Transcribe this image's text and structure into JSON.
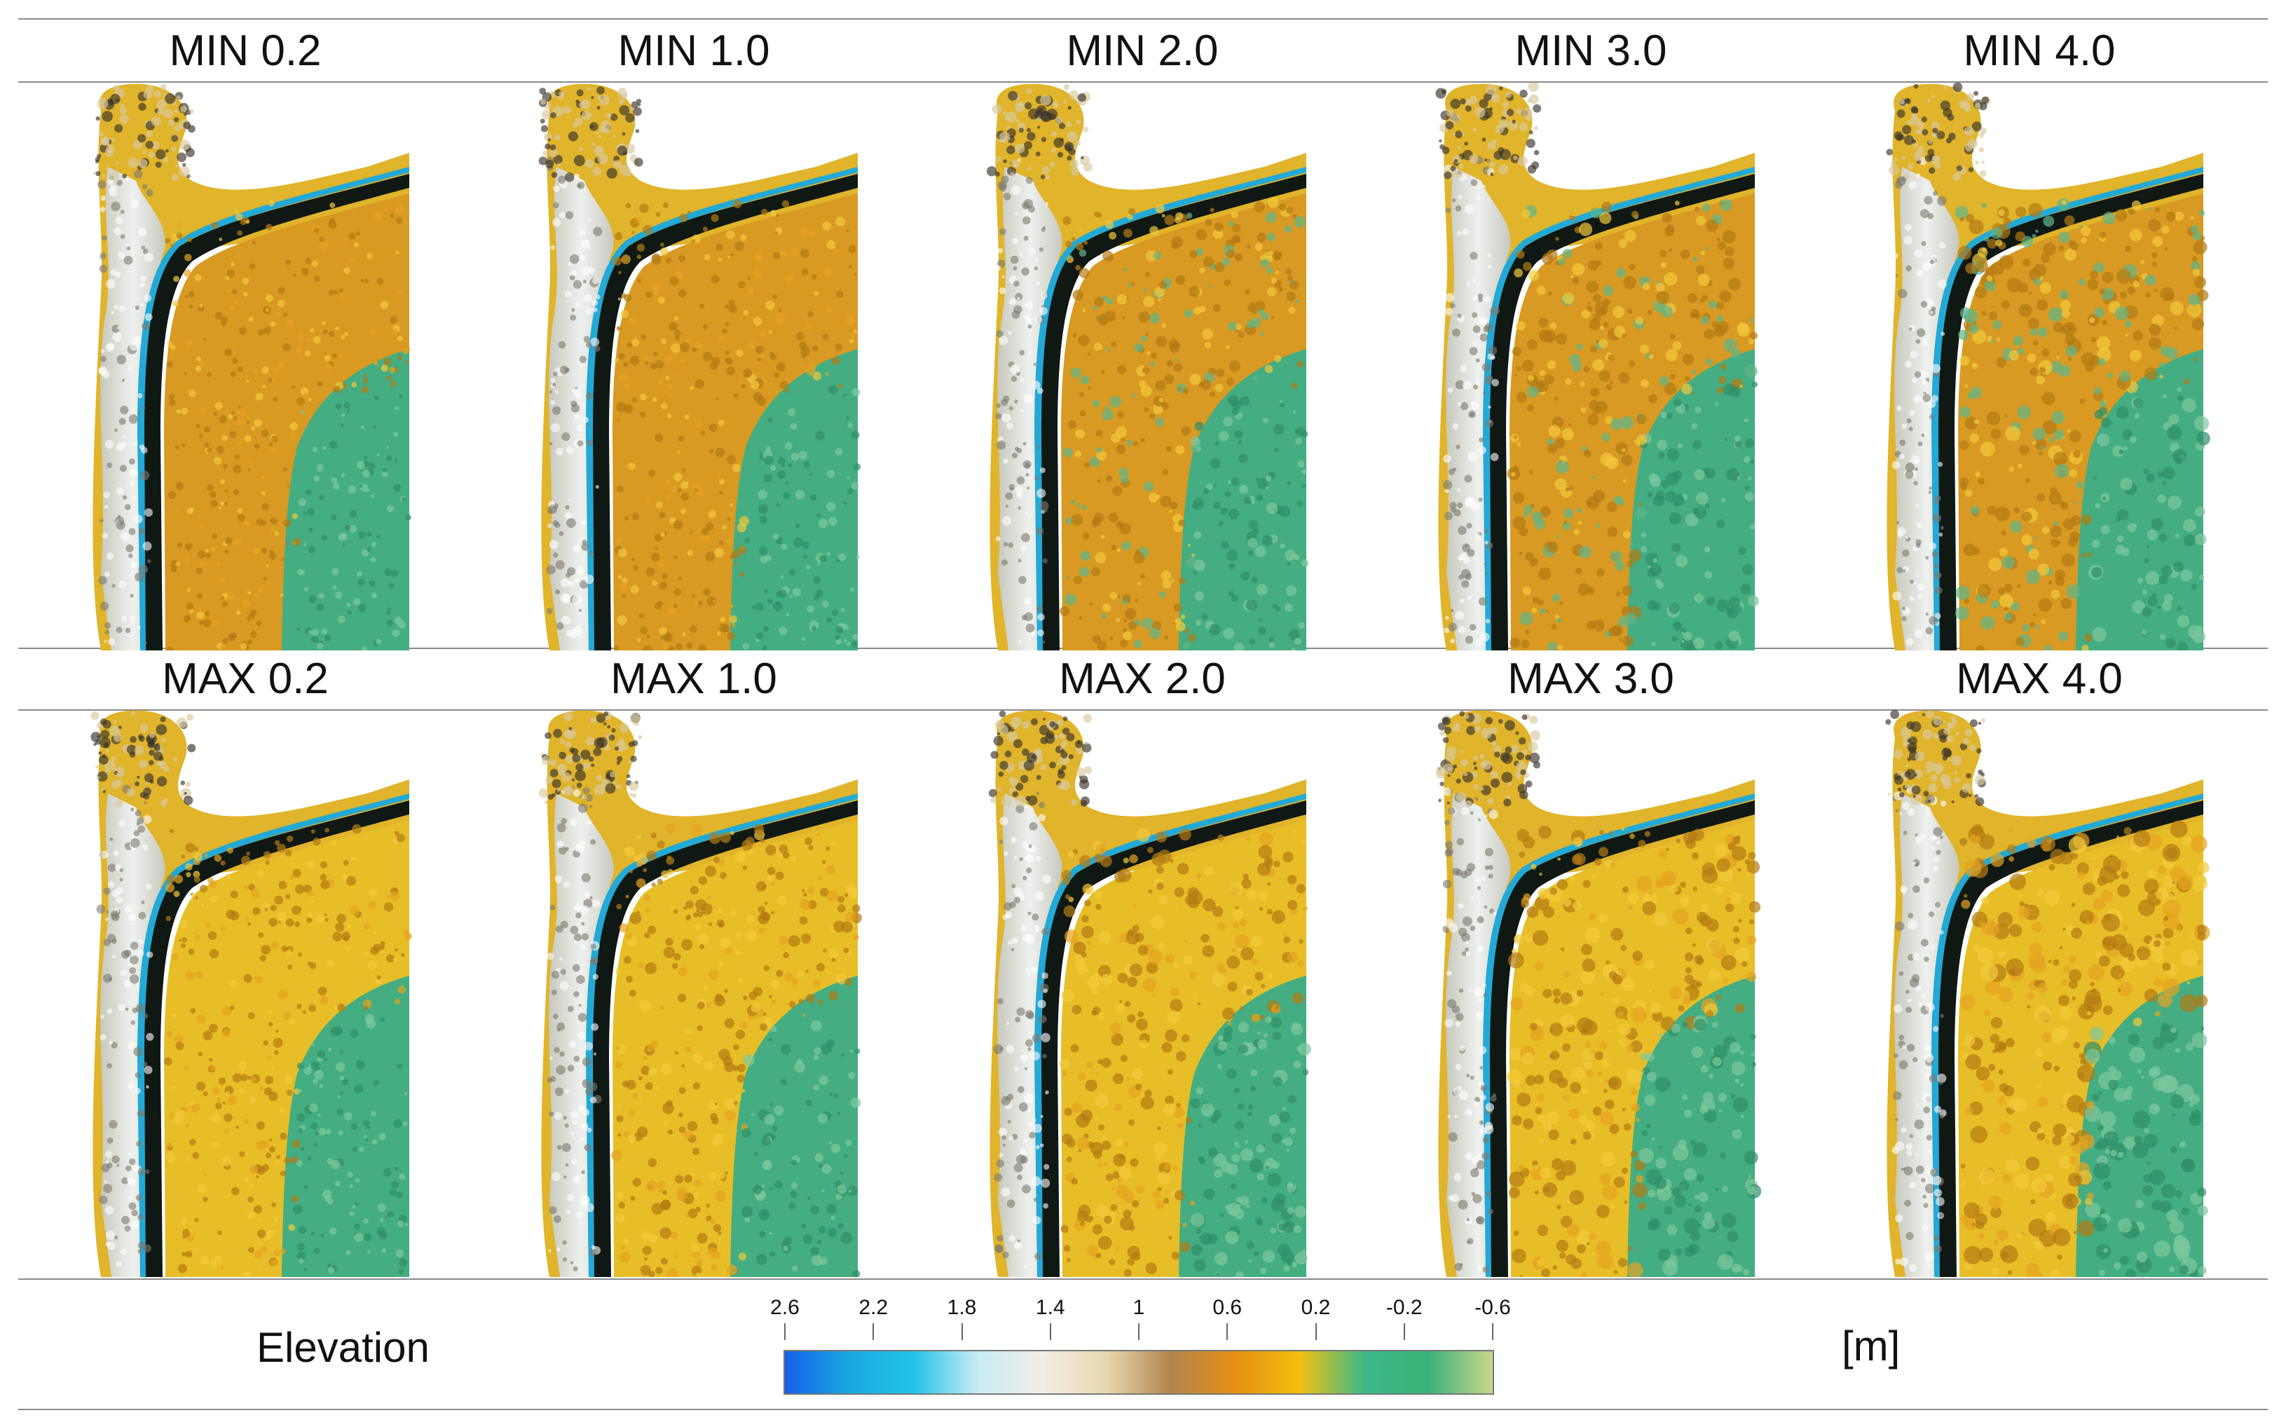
{
  "top_row": {
    "titles": [
      "MIN 0.2",
      "MIN 1.0",
      "MIN 2.0",
      "MIN 3.0",
      "MIN 4.0"
    ]
  },
  "bottom_row": {
    "titles": [
      "MAX 0.2",
      "MAX 1.0",
      "MAX 2.0",
      "MAX 3.0",
      "MAX 4.0"
    ]
  },
  "legend": {
    "label": "Elevation",
    "unit": "[m]",
    "ticks": [
      "2.6",
      "2.2",
      "1.8",
      "1.4",
      "1",
      "0.6",
      "0.2",
      "-0.2",
      "-0.6"
    ],
    "range": [
      2.6,
      -0.6
    ],
    "colors": [
      "#1560e8",
      "#1aa8e0",
      "#22c3ea",
      "#c9ecf3",
      "#f1eee6",
      "#e8d7b0",
      "#b0864e",
      "#e48f14",
      "#f4bf10",
      "#3cb98a",
      "#38b277",
      "#c8d78b"
    ]
  },
  "map_colors": {
    "bank_light": "#eef1ee",
    "bank_grey": "#c8c8bd",
    "channel_dark": "#101814",
    "channel_blue": "#23a9d5",
    "floodplain_orange": "#d89a22",
    "floodplain_yellow": "#e7be27",
    "lowland_green": "#44ad81",
    "rim_yellow": "#e0b42b"
  }
}
